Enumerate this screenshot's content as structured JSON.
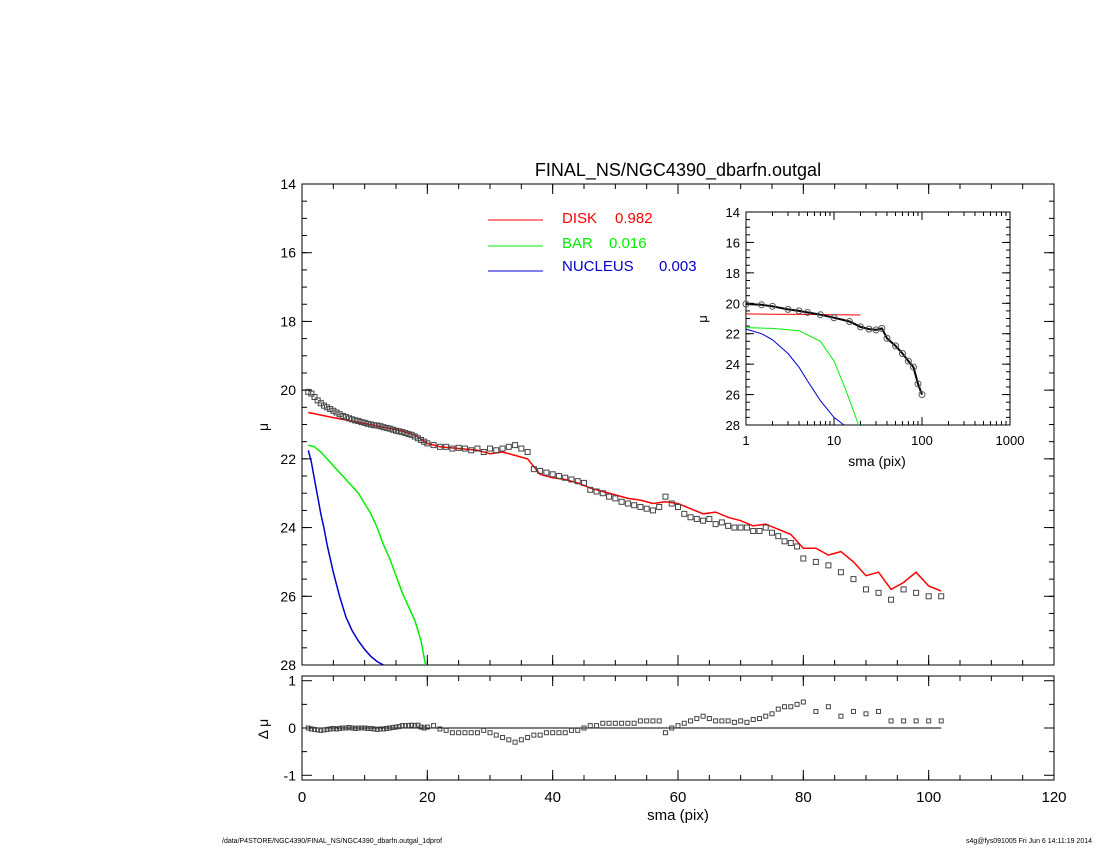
{
  "chart_data": [
    {
      "type": "line",
      "title": "FINAL_NS/NGC4390_dbarfn.outgal",
      "xlabel": "sma (pix)",
      "ylabel": "μ",
      "xlim": [
        0,
        120
      ],
      "ylim": [
        28,
        14
      ],
      "y_inverted": true,
      "xticks": [
        0,
        20,
        40,
        60,
        80,
        100,
        120
      ],
      "yticks": [
        14,
        16,
        18,
        20,
        22,
        24,
        26,
        28
      ],
      "legend": {
        "placement": "top-center",
        "entries": [
          {
            "name": "DISK",
            "value": "0.982",
            "color": "#ff0000"
          },
          {
            "name": "BAR",
            "value": "0.016",
            "color": "#00ee00"
          },
          {
            "name": "NUCLEUS",
            "value": "0.003",
            "color": "#0000cc"
          }
        ]
      },
      "series": [
        {
          "name": "DISK",
          "color": "#ff0000",
          "x": [
            1,
            5,
            10,
            15,
            18,
            20,
            22,
            25,
            28,
            30,
            32,
            34,
            36,
            38,
            40,
            42,
            44,
            46,
            48,
            50,
            52,
            54,
            56,
            58,
            60,
            62,
            64,
            66,
            68,
            70,
            72,
            74,
            76,
            78,
            80,
            82,
            84,
            86,
            88,
            90,
            92,
            94,
            96,
            98,
            100,
            102
          ],
          "y": [
            20.65,
            20.8,
            20.97,
            21.15,
            21.3,
            21.55,
            21.65,
            21.7,
            21.75,
            21.85,
            21.8,
            21.9,
            22.0,
            22.45,
            22.55,
            22.6,
            22.7,
            22.85,
            22.95,
            23.05,
            23.15,
            23.2,
            23.3,
            23.25,
            23.3,
            23.45,
            23.6,
            23.55,
            23.7,
            23.8,
            23.95,
            23.9,
            24.05,
            24.2,
            24.6,
            24.6,
            24.8,
            24.7,
            25.0,
            25.4,
            25.3,
            25.8,
            25.6,
            25.3,
            25.7,
            25.85
          ]
        },
        {
          "name": "BAR",
          "color": "#00ee00",
          "x": [
            1,
            2,
            3,
            4,
            5,
            6,
            7,
            8,
            9,
            10,
            11,
            12,
            13,
            14,
            15,
            16,
            17,
            18,
            19,
            19.7
          ],
          "y": [
            21.6,
            21.65,
            21.8,
            22.0,
            22.2,
            22.4,
            22.6,
            22.8,
            23.0,
            23.3,
            23.6,
            24.0,
            24.5,
            24.9,
            25.4,
            25.9,
            26.3,
            26.7,
            27.3,
            28.0
          ]
        },
        {
          "name": "NUCLEUS",
          "color": "#0000cc",
          "x": [
            1,
            1.5,
            2,
            2.5,
            3,
            3.5,
            4,
            5,
            6,
            7,
            8,
            9,
            10,
            11,
            12,
            13
          ],
          "y": [
            21.75,
            22.1,
            22.6,
            23.1,
            23.6,
            24.0,
            24.5,
            25.3,
            26.0,
            26.6,
            27.0,
            27.3,
            27.55,
            27.75,
            27.9,
            28.0
          ]
        },
        {
          "name": "data",
          "marker": "square",
          "x": [
            1,
            1.5,
            2,
            2.5,
            3,
            3.5,
            4,
            4.5,
            5,
            5.5,
            6,
            6.5,
            7,
            7.5,
            8,
            8.5,
            9,
            9.5,
            10,
            10.5,
            11,
            11.5,
            12,
            12.5,
            13,
            13.5,
            14,
            14.5,
            15,
            15.5,
            16,
            16.5,
            17,
            17.5,
            18,
            18.5,
            19,
            19.5,
            20,
            21,
            22,
            23,
            24,
            25,
            26,
            27,
            28,
            29,
            30,
            31,
            32,
            33,
            34,
            35,
            36,
            37,
            38,
            39,
            40,
            41,
            42,
            43,
            44,
            45,
            46,
            47,
            48,
            49,
            50,
            51,
            52,
            53,
            54,
            55,
            56,
            57,
            58,
            59,
            60,
            61,
            62,
            63,
            64,
            65,
            66,
            67,
            68,
            69,
            70,
            71,
            72,
            73,
            74,
            75,
            76,
            77,
            78,
            79,
            80,
            82,
            84,
            86,
            88,
            90,
            92,
            94,
            96,
            98,
            100,
            102
          ],
          "y": [
            20.05,
            20.1,
            20.2,
            20.3,
            20.38,
            20.45,
            20.5,
            20.55,
            20.6,
            20.65,
            20.7,
            20.75,
            20.78,
            20.82,
            20.85,
            20.88,
            20.9,
            20.93,
            20.95,
            20.98,
            21.0,
            21.02,
            21.03,
            21.05,
            21.08,
            21.1,
            21.12,
            21.15,
            21.18,
            21.2,
            21.22,
            21.25,
            21.28,
            21.3,
            21.35,
            21.4,
            21.45,
            21.5,
            21.55,
            21.6,
            21.65,
            21.65,
            21.7,
            21.68,
            21.7,
            21.75,
            21.7,
            21.8,
            21.7,
            21.75,
            21.7,
            21.65,
            21.6,
            21.7,
            21.8,
            22.3,
            22.35,
            22.4,
            22.45,
            22.5,
            22.55,
            22.6,
            22.65,
            22.7,
            22.9,
            22.95,
            23.0,
            23.1,
            23.15,
            23.25,
            23.3,
            23.35,
            23.4,
            23.45,
            23.5,
            23.4,
            23.1,
            23.3,
            23.4,
            23.6,
            23.7,
            23.75,
            23.8,
            23.75,
            23.9,
            23.85,
            23.95,
            24.0,
            24.0,
            24.0,
            24.1,
            24.1,
            24.0,
            24.15,
            24.25,
            24.4,
            24.45,
            24.55,
            24.9,
            25.0,
            25.1,
            25.3,
            25.5,
            25.8,
            25.9,
            26.1,
            25.8,
            25.9,
            26.0,
            26.0
          ]
        }
      ]
    },
    {
      "type": "scatter",
      "xlabel": "",
      "ylabel": "Δ μ",
      "xlim": [
        0,
        120
      ],
      "ylim": [
        -1.1,
        1.1
      ],
      "yticks": [
        -1,
        0,
        1
      ],
      "reference_line": 0,
      "series": [
        {
          "name": "residual",
          "marker": "square",
          "x": [
            1,
            1.5,
            2,
            2.5,
            3,
            3.5,
            4,
            4.5,
            5,
            5.5,
            6,
            6.5,
            7,
            7.5,
            8,
            8.5,
            9,
            9.5,
            10,
            10.5,
            11,
            11.5,
            12,
            12.5,
            13,
            13.5,
            14,
            14.5,
            15,
            15.5,
            16,
            16.5,
            17,
            17.5,
            18,
            18.5,
            19,
            19.5,
            20,
            21,
            22,
            23,
            24,
            25,
            26,
            27,
            28,
            29,
            30,
            31,
            32,
            33,
            34,
            35,
            36,
            37,
            38,
            39,
            40,
            41,
            42,
            43,
            44,
            45,
            46,
            47,
            48,
            49,
            50,
            51,
            52,
            53,
            54,
            55,
            56,
            57,
            58,
            59,
            60,
            61,
            62,
            63,
            64,
            65,
            66,
            67,
            68,
            69,
            70,
            71,
            72,
            73,
            74,
            75,
            76,
            77,
            78,
            79,
            80,
            82,
            84,
            86,
            88,
            90,
            92,
            94,
            96,
            98,
            100,
            102
          ],
          "y": [
            0.0,
            -0.02,
            -0.03,
            -0.04,
            -0.05,
            -0.04,
            -0.03,
            -0.02,
            -0.01,
            -0.02,
            -0.01,
            0.0,
            0.0,
            0.01,
            0.0,
            -0.01,
            0.0,
            0.0,
            0.0,
            -0.01,
            -0.01,
            -0.02,
            -0.03,
            -0.02,
            -0.02,
            -0.01,
            0.0,
            0.01,
            0.02,
            0.03,
            0.05,
            0.05,
            0.05,
            0.06,
            0.05,
            0.06,
            0.02,
            0.0,
            0.02,
            0.05,
            -0.02,
            -0.05,
            -0.1,
            -0.1,
            -0.1,
            -0.1,
            -0.1,
            -0.05,
            -0.1,
            -0.15,
            -0.2,
            -0.25,
            -0.3,
            -0.25,
            -0.2,
            -0.15,
            -0.15,
            -0.1,
            -0.1,
            -0.1,
            -0.1,
            -0.05,
            -0.05,
            0.0,
            0.05,
            0.05,
            0.1,
            0.1,
            0.1,
            0.1,
            0.1,
            0.1,
            0.15,
            0.15,
            0.15,
            0.15,
            -0.1,
            0.0,
            0.05,
            0.1,
            0.15,
            0.2,
            0.25,
            0.2,
            0.15,
            0.15,
            0.15,
            0.12,
            0.15,
            0.12,
            0.18,
            0.2,
            0.25,
            0.3,
            0.4,
            0.45,
            0.45,
            0.5,
            0.55,
            0.35,
            0.45,
            0.25,
            0.35,
            0.3,
            0.35,
            0.15,
            0.15,
            0.15,
            0.15,
            0.15
          ]
        }
      ]
    },
    {
      "type": "line",
      "inset": true,
      "xlabel": "sma (pix)",
      "ylabel": "μ",
      "xscale": "log",
      "xlim": [
        1,
        1000
      ],
      "ylim": [
        28,
        14
      ],
      "y_inverted": true,
      "xticks": [
        1,
        10,
        100,
        1000
      ],
      "yticks": [
        14,
        16,
        18,
        20,
        22,
        24,
        26,
        28
      ],
      "series": [
        {
          "name": "DISK",
          "color": "#ff0000",
          "x": [
            1,
            2,
            5,
            10,
            20
          ],
          "y": [
            20.7,
            20.72,
            20.73,
            20.75,
            20.77
          ]
        },
        {
          "name": "BAR",
          "color": "#00ee00",
          "x": [
            1,
            2,
            4,
            7,
            10,
            13,
            16,
            19
          ],
          "y": [
            21.6,
            21.65,
            21.8,
            22.5,
            23.8,
            25.4,
            26.8,
            28.0
          ]
        },
        {
          "name": "NUCLEUS",
          "color": "#0000cc",
          "x": [
            1,
            1.5,
            2,
            3,
            4,
            5,
            7,
            10,
            13
          ],
          "y": [
            21.7,
            22.0,
            22.4,
            23.3,
            24.2,
            25.1,
            26.4,
            27.5,
            28.0
          ]
        },
        {
          "name": "data",
          "marker": "circle",
          "x": [
            1,
            1.5,
            2,
            3,
            4,
            5,
            7,
            10,
            15,
            20,
            25,
            30,
            35,
            40,
            50,
            60,
            70,
            80,
            90,
            100
          ],
          "y": [
            20.05,
            20.1,
            20.2,
            20.4,
            20.5,
            20.6,
            20.75,
            20.95,
            21.2,
            21.55,
            21.7,
            21.75,
            21.65,
            22.3,
            22.8,
            23.3,
            23.8,
            24.2,
            25.3,
            26.0
          ]
        }
      ]
    }
  ],
  "footer": {
    "left": "/data/P4STORE/NGC4390/FINAL_NS/NGC4390_dbarfn.outgal_1dprof",
    "right": "s4g@fys091005  Fri Jun  6 14:11:19 2014"
  }
}
